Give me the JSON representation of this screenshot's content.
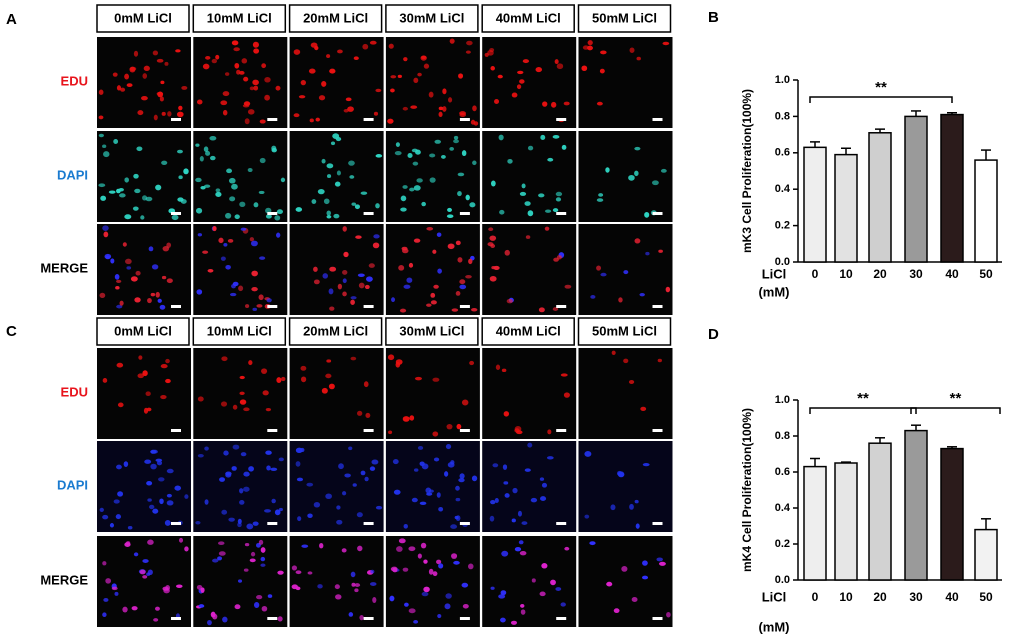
{
  "panel_a": {
    "label": "A",
    "columns": [
      "0mM LiCl",
      "10mM LiCl",
      "20mM LiCl",
      "30mM LiCl",
      "40mM LiCl",
      "50mM LiCl"
    ],
    "rows": [
      "EDU",
      "DAPI",
      "MERGE"
    ]
  },
  "panel_c": {
    "label": "C",
    "columns": [
      "0mM LiCl",
      "10mM LiCl",
      "20mM LiCl",
      "30mM LiCl",
      "40mM LiCl",
      "50mM LiCl"
    ],
    "rows": [
      "EDU",
      "DAPI",
      "MERGE"
    ]
  },
  "chart_data": [
    {
      "type": "bar",
      "panel_label": "B",
      "ylabel": "mK3 Cell Proliferation(100%)",
      "xlabel": "LiCl",
      "xunit": "(mM)",
      "categories": [
        "0",
        "10",
        "20",
        "30",
        "40",
        "50"
      ],
      "values": [
        0.63,
        0.59,
        0.71,
        0.8,
        0.81,
        0.56
      ],
      "errors": [
        0.03,
        0.035,
        0.02,
        0.03,
        0.01,
        0.055
      ],
      "colors": [
        "#eeeeee",
        "#e2e2e2",
        "#cfcfcf",
        "#9a9a9a",
        "#2b1b1b",
        "#ffffff"
      ],
      "ylim": [
        0,
        1
      ],
      "yticks": [
        {
          "value": 0,
          "label": "0.0"
        },
        0.2,
        0.4,
        0.6,
        0.8,
        {
          "value": 1,
          "label": "1.0"
        }
      ],
      "annotations": [
        {
          "text": "**"
        }
      ]
    },
    {
      "type": "bar",
      "panel_label": "D",
      "ylabel": "mK4 Cell Proliferation(100%)",
      "xlabel": "LiCl",
      "xunit": "(mM)",
      "categories": [
        "0",
        "10",
        "20",
        "30",
        "40",
        "50"
      ],
      "values": [
        0.63,
        0.65,
        0.76,
        0.83,
        0.73,
        0.28
      ],
      "errors": [
        0.045,
        0.005,
        0.03,
        0.03,
        0.01,
        0.06
      ],
      "colors": [
        "#eeeeee",
        "#e6e6e6",
        "#d2d2d2",
        "#9a9a9a",
        "#2b1b1b",
        "#f2f2f2"
      ],
      "ylim": [
        0,
        1
      ],
      "yticks": [
        {
          "value": 0,
          "label": "0.0"
        },
        0.2,
        0.4,
        0.6,
        0.8,
        {
          "value": 1,
          "label": "1.0"
        }
      ],
      "annotations": [
        {
          "text": "**"
        },
        {
          "text": "**"
        }
      ]
    }
  ]
}
